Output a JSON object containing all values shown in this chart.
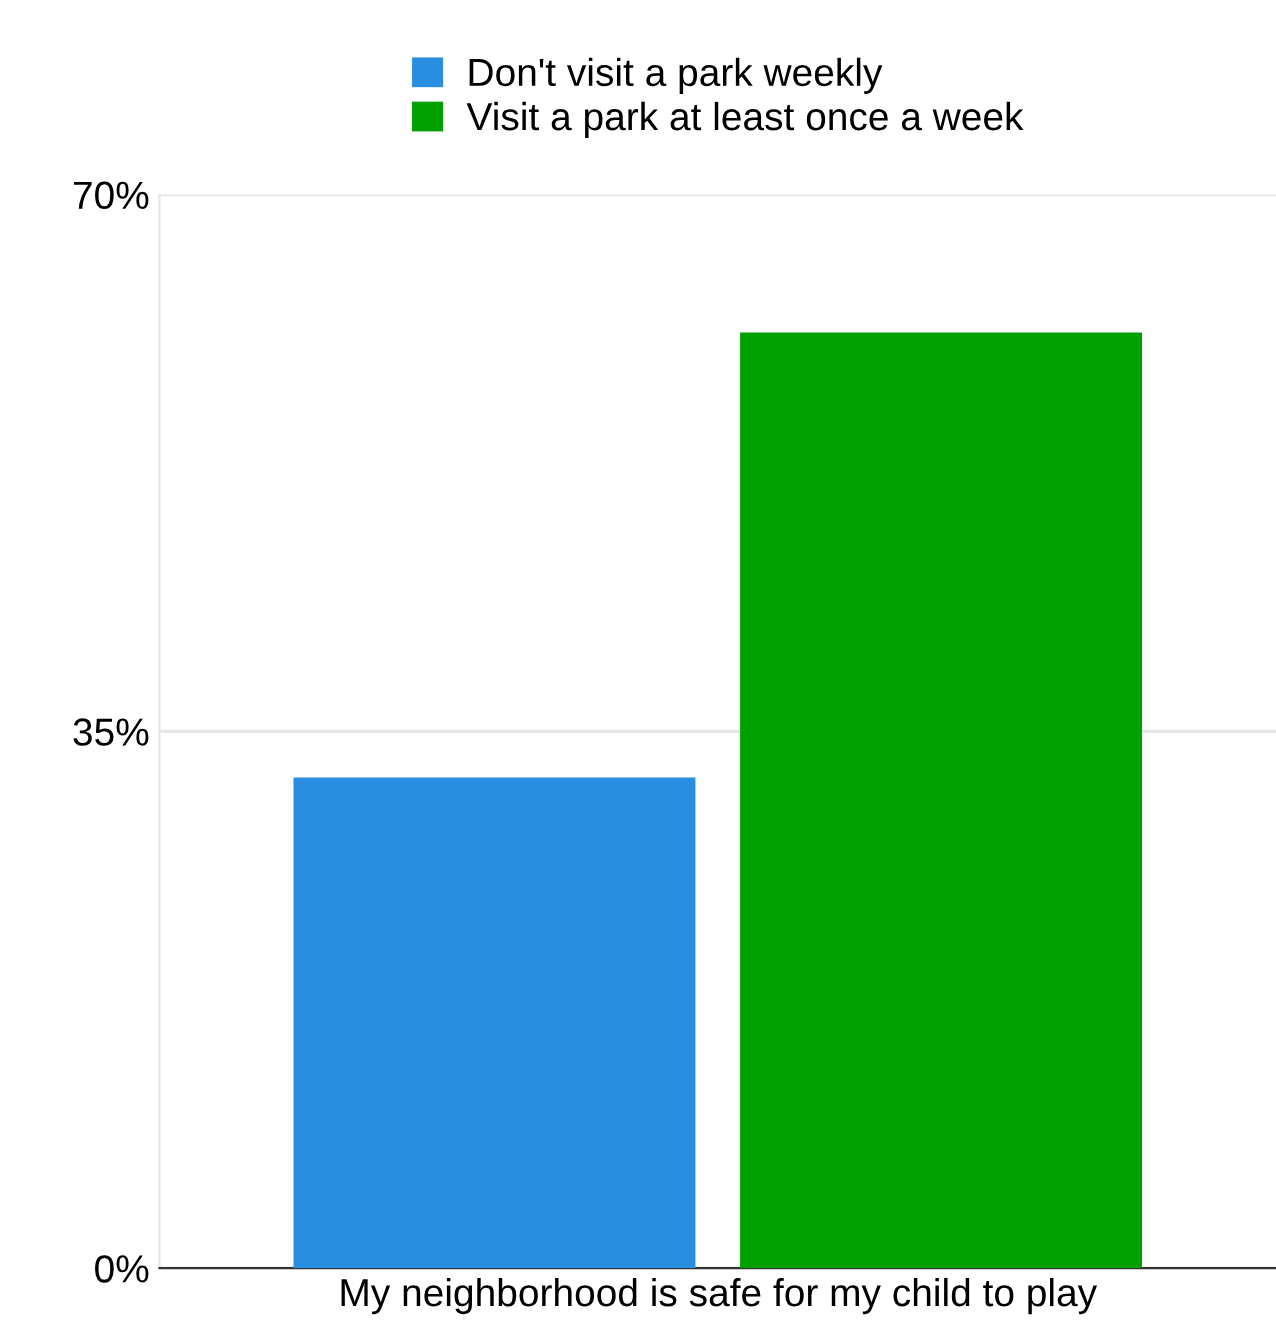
{
  "chart_data": {
    "type": "bar",
    "categories": [
      "My neighborhood is safe for my child to play"
    ],
    "series": [
      {
        "name": "Don't visit a park weekly",
        "color": "#2a8ee0",
        "values": [
          32
        ]
      },
      {
        "name": "Visit a park at least once a week",
        "color": "#00a000",
        "values": [
          61
        ]
      }
    ],
    "ylim": [
      0,
      70
    ],
    "yticks": [
      {
        "value": 0,
        "label": "0%"
      },
      {
        "value": 35,
        "label": "35%"
      },
      {
        "value": 70,
        "label": "70%"
      }
    ],
    "grid": "y",
    "legend": "top"
  }
}
